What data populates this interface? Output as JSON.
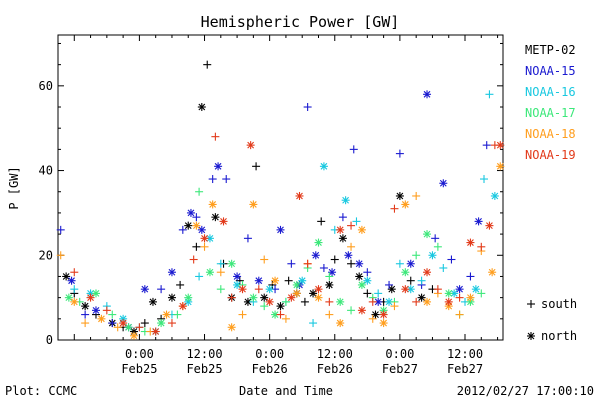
{
  "chart_data": {
    "type": "scatter",
    "title": "Hemispheric Power [GW]",
    "xlabel": "Date and Time",
    "ylabel": "P [GW]",
    "ylim": [
      0,
      72
    ],
    "xlim_hours": [
      -15,
      138
    ],
    "grid": false,
    "legend_position": "right",
    "x_ticks": [
      {
        "hour": 0,
        "time": "0:00",
        "date": "Feb25"
      },
      {
        "hour": 12,
        "time": "12:00",
        "date": "Feb25"
      },
      {
        "hour": 24,
        "time": "0:00",
        "date": "Feb26"
      },
      {
        "hour": 36,
        "time": "12:00",
        "date": "Feb26"
      },
      {
        "hour": 48,
        "time": "0:00",
        "date": "Feb27"
      },
      {
        "hour": 60,
        "time": "12:00",
        "date": "Feb27"
      }
    ],
    "y_ticks": [
      0,
      20,
      40,
      60
    ],
    "marker_legend": [
      {
        "symbol": "+",
        "label": "south"
      },
      {
        "symbol": "*",
        "label": "north"
      }
    ],
    "series": [
      {
        "name": "METP-02",
        "color": "#000000",
        "points": [
          [
            -13.5,
            15,
            "*"
          ],
          [
            -12,
            11,
            "+"
          ],
          [
            -10,
            8,
            "*"
          ],
          [
            -8,
            6,
            "+"
          ],
          [
            -5,
            4,
            "*"
          ],
          [
            -3,
            3,
            "+"
          ],
          [
            -1,
            2,
            "*"
          ],
          [
            1,
            4,
            "+"
          ],
          [
            2.5,
            9,
            "*"
          ],
          [
            4,
            5,
            "+"
          ],
          [
            6,
            10,
            "*"
          ],
          [
            7.5,
            13,
            "+"
          ],
          [
            9,
            27,
            "*"
          ],
          [
            10.5,
            22,
            "+"
          ],
          [
            11.5,
            55,
            "*"
          ],
          [
            12.5,
            65,
            "+"
          ],
          [
            14,
            29,
            "*"
          ],
          [
            15.5,
            18,
            "+"
          ],
          [
            17,
            10,
            "*"
          ],
          [
            18.5,
            14,
            "+"
          ],
          [
            20,
            9,
            "*"
          ],
          [
            21.5,
            41,
            "+"
          ],
          [
            23,
            10,
            "*"
          ],
          [
            24.5,
            13,
            "+"
          ],
          [
            26,
            8,
            "*"
          ],
          [
            27.5,
            14,
            "+"
          ],
          [
            29,
            11,
            "*"
          ],
          [
            30.5,
            9,
            "+"
          ],
          [
            32,
            11,
            "*"
          ],
          [
            33.5,
            28,
            "+"
          ],
          [
            35,
            13,
            "*"
          ],
          [
            36,
            19,
            "+"
          ],
          [
            37.5,
            24,
            "*"
          ],
          [
            39,
            18,
            "+"
          ],
          [
            40.5,
            15,
            "*"
          ],
          [
            42,
            11,
            "+"
          ],
          [
            43.5,
            6,
            "*"
          ],
          [
            45,
            9,
            "+"
          ],
          [
            46.5,
            12,
            "*"
          ],
          [
            48,
            34,
            "*"
          ],
          [
            50,
            14,
            "+"
          ],
          [
            52,
            10,
            "*"
          ],
          [
            54,
            12,
            "+"
          ]
        ]
      },
      {
        "name": "NOAA-15",
        "color": "#1a1ad0",
        "points": [
          [
            -14.5,
            26,
            "+"
          ],
          [
            -12.5,
            14,
            "*"
          ],
          [
            -10,
            6,
            "+"
          ],
          [
            -8,
            7,
            "*"
          ],
          [
            -5,
            4,
            "+"
          ],
          [
            -2,
            3,
            "*"
          ],
          [
            1,
            12,
            "*"
          ],
          [
            4,
            12,
            "+"
          ],
          [
            6,
            16,
            "*"
          ],
          [
            8,
            26,
            "+"
          ],
          [
            9.5,
            30,
            "*"
          ],
          [
            10.5,
            29,
            "+"
          ],
          [
            11.5,
            26,
            "*"
          ],
          [
            13.5,
            38,
            "+"
          ],
          [
            14.5,
            41,
            "*"
          ],
          [
            16,
            38,
            "+"
          ],
          [
            18,
            15,
            "*"
          ],
          [
            20,
            24,
            "+"
          ],
          [
            22,
            14,
            "*"
          ],
          [
            25,
            12,
            "+"
          ],
          [
            26,
            26,
            "*"
          ],
          [
            28,
            18,
            "+"
          ],
          [
            29.5,
            13,
            "*"
          ],
          [
            31,
            55,
            "+"
          ],
          [
            32.5,
            20,
            "*"
          ],
          [
            34,
            17,
            "+"
          ],
          [
            35.5,
            16,
            "*"
          ],
          [
            37.5,
            29,
            "+"
          ],
          [
            38.5,
            20,
            "*"
          ],
          [
            39.5,
            45,
            "+"
          ],
          [
            40.5,
            18,
            "*"
          ],
          [
            42,
            16,
            "+"
          ],
          [
            44,
            9,
            "*"
          ],
          [
            46,
            13,
            "+"
          ],
          [
            48,
            44,
            "+"
          ],
          [
            50,
            18,
            "*"
          ],
          [
            52,
            13,
            "+"
          ],
          [
            53,
            58,
            "*"
          ],
          [
            54.5,
            24,
            "+"
          ],
          [
            56,
            37,
            "*"
          ],
          [
            57.5,
            19,
            "+"
          ],
          [
            59,
            12,
            "*"
          ],
          [
            61,
            15,
            "+"
          ],
          [
            62.5,
            28,
            "*"
          ],
          [
            64,
            46,
            "+"
          ]
        ]
      },
      {
        "name": "NOAA-16",
        "color": "#18c8e0",
        "points": [
          [
            -12,
            12,
            "+"
          ],
          [
            -9,
            11,
            "*"
          ],
          [
            -6,
            8,
            "+"
          ],
          [
            -3,
            5,
            "*"
          ],
          [
            0,
            3,
            "+"
          ],
          [
            3,
            2,
            "*"
          ],
          [
            6,
            6,
            "+"
          ],
          [
            9,
            9,
            "*"
          ],
          [
            11,
            15,
            "+"
          ],
          [
            13,
            24,
            "*"
          ],
          [
            15,
            18,
            "+"
          ],
          [
            18,
            13,
            "*"
          ],
          [
            21,
            9,
            "+"
          ],
          [
            24,
            12,
            "*"
          ],
          [
            27,
            9,
            "+"
          ],
          [
            30,
            14,
            "*"
          ],
          [
            32,
            4,
            "+"
          ],
          [
            34,
            41,
            "*"
          ],
          [
            36,
            26,
            "+"
          ],
          [
            38,
            33,
            "*"
          ],
          [
            40,
            28,
            "+"
          ],
          [
            42,
            14,
            "*"
          ],
          [
            44,
            11,
            "+"
          ],
          [
            46,
            9,
            "*"
          ],
          [
            48,
            18,
            "+"
          ],
          [
            50,
            12,
            "*"
          ],
          [
            52,
            14,
            "+"
          ],
          [
            54,
            20,
            "*"
          ],
          [
            56,
            17,
            "+"
          ],
          [
            58,
            11,
            "*"
          ],
          [
            60,
            9,
            "+"
          ],
          [
            62,
            12,
            "*"
          ],
          [
            63.5,
            38,
            "+"
          ],
          [
            64.5,
            58,
            "+"
          ],
          [
            65.5,
            34,
            "*"
          ]
        ]
      },
      {
        "name": "NOAA-17",
        "color": "#3ce87a",
        "points": [
          [
            -13,
            10,
            "*"
          ],
          [
            -11,
            9,
            "+"
          ],
          [
            -8,
            11,
            "*"
          ],
          [
            -5,
            6,
            "+"
          ],
          [
            -2,
            3,
            "*"
          ],
          [
            1,
            2,
            "+"
          ],
          [
            4,
            4,
            "*"
          ],
          [
            7,
            6,
            "+"
          ],
          [
            9,
            10,
            "*"
          ],
          [
            11,
            35,
            "+"
          ],
          [
            13,
            16,
            "*"
          ],
          [
            15,
            12,
            "+"
          ],
          [
            17,
            18,
            "*"
          ],
          [
            19,
            13,
            "+"
          ],
          [
            21,
            10,
            "*"
          ],
          [
            23,
            8,
            "+"
          ],
          [
            25,
            6,
            "*"
          ],
          [
            27,
            9,
            "+"
          ],
          [
            29,
            13,
            "*"
          ],
          [
            31,
            17,
            "+"
          ],
          [
            33,
            23,
            "*"
          ],
          [
            35,
            15,
            "+"
          ],
          [
            37,
            9,
            "*"
          ],
          [
            39,
            7,
            "+"
          ],
          [
            41,
            13,
            "*"
          ],
          [
            43,
            10,
            "+"
          ],
          [
            45,
            7,
            "*"
          ],
          [
            47,
            9,
            "+"
          ],
          [
            49,
            16,
            "*"
          ],
          [
            51,
            20,
            "+"
          ],
          [
            53,
            25,
            "*"
          ],
          [
            55,
            22,
            "+"
          ],
          [
            57,
            11,
            "*"
          ],
          [
            59,
            6,
            "+"
          ],
          [
            61,
            9,
            "*"
          ],
          [
            63,
            11,
            "+"
          ]
        ]
      },
      {
        "name": "NOAA-18",
        "color": "#ff9e1e",
        "points": [
          [
            -14.5,
            20,
            "+"
          ],
          [
            -12,
            9,
            "*"
          ],
          [
            -10,
            4,
            "+"
          ],
          [
            -7,
            5,
            "*"
          ],
          [
            -4,
            3,
            "+"
          ],
          [
            -1,
            1,
            "*"
          ],
          [
            2,
            2,
            "+"
          ],
          [
            5,
            6,
            "*"
          ],
          [
            8,
            8,
            "+"
          ],
          [
            10.5,
            27,
            "*"
          ],
          [
            12,
            22,
            "+"
          ],
          [
            13.5,
            32,
            "*"
          ],
          [
            15,
            16,
            "+"
          ],
          [
            17,
            3,
            "*"
          ],
          [
            19,
            6,
            "+"
          ],
          [
            21,
            32,
            "*"
          ],
          [
            23,
            19,
            "+"
          ],
          [
            25,
            14,
            "*"
          ],
          [
            27,
            5,
            "+"
          ],
          [
            29,
            11,
            "*"
          ],
          [
            31,
            18,
            "+"
          ],
          [
            33,
            10,
            "*"
          ],
          [
            35,
            6,
            "+"
          ],
          [
            37,
            4,
            "*"
          ],
          [
            39,
            22,
            "+"
          ],
          [
            41,
            26,
            "*"
          ],
          [
            43,
            5,
            "+"
          ],
          [
            45,
            4,
            "*"
          ],
          [
            47,
            8,
            "+"
          ],
          [
            49,
            32,
            "*"
          ],
          [
            51,
            34,
            "+"
          ],
          [
            53,
            9,
            "*"
          ],
          [
            55,
            11,
            "+"
          ],
          [
            57,
            8,
            "*"
          ],
          [
            59,
            6,
            "+"
          ],
          [
            61,
            10,
            "*"
          ],
          [
            63,
            21,
            "+"
          ],
          [
            65,
            16,
            "*"
          ],
          [
            66.5,
            41,
            "*"
          ]
        ]
      },
      {
        "name": "NOAA-19",
        "color": "#e23a1a",
        "points": [
          [
            -12,
            16,
            "+"
          ],
          [
            -9,
            10,
            "*"
          ],
          [
            -6,
            7,
            "+"
          ],
          [
            -3,
            4,
            "*"
          ],
          [
            0,
            3,
            "+"
          ],
          [
            3,
            2,
            "*"
          ],
          [
            6,
            4,
            "+"
          ],
          [
            8,
            8,
            "*"
          ],
          [
            10,
            19,
            "+"
          ],
          [
            12,
            24,
            "*"
          ],
          [
            14,
            48,
            "+"
          ],
          [
            15.5,
            28,
            "*"
          ],
          [
            17,
            10,
            "+"
          ],
          [
            19,
            12,
            "*"
          ],
          [
            20.5,
            46,
            "*"
          ],
          [
            22,
            12,
            "+"
          ],
          [
            24,
            9,
            "*"
          ],
          [
            26,
            6,
            "+"
          ],
          [
            28,
            10,
            "*"
          ],
          [
            29.5,
            34,
            "*"
          ],
          [
            31,
            18,
            "+"
          ],
          [
            33,
            12,
            "*"
          ],
          [
            35,
            9,
            "+"
          ],
          [
            37,
            26,
            "*"
          ],
          [
            39,
            27,
            "+"
          ],
          [
            41,
            7,
            "*"
          ],
          [
            43,
            9,
            "+"
          ],
          [
            45,
            6,
            "*"
          ],
          [
            47,
            31,
            "+"
          ],
          [
            49,
            12,
            "*"
          ],
          [
            51,
            9,
            "+"
          ],
          [
            53,
            16,
            "*"
          ],
          [
            55,
            12,
            "+"
          ],
          [
            57,
            9,
            "*"
          ],
          [
            59,
            10,
            "+"
          ],
          [
            61,
            23,
            "*"
          ],
          [
            63,
            22,
            "+"
          ],
          [
            64.5,
            27,
            "*"
          ],
          [
            65.5,
            46,
            "+"
          ],
          [
            66.5,
            46,
            "*"
          ]
        ]
      }
    ]
  },
  "footer": {
    "left": "Plot: CCMC",
    "right": "2012/02/27 17:00:10"
  }
}
